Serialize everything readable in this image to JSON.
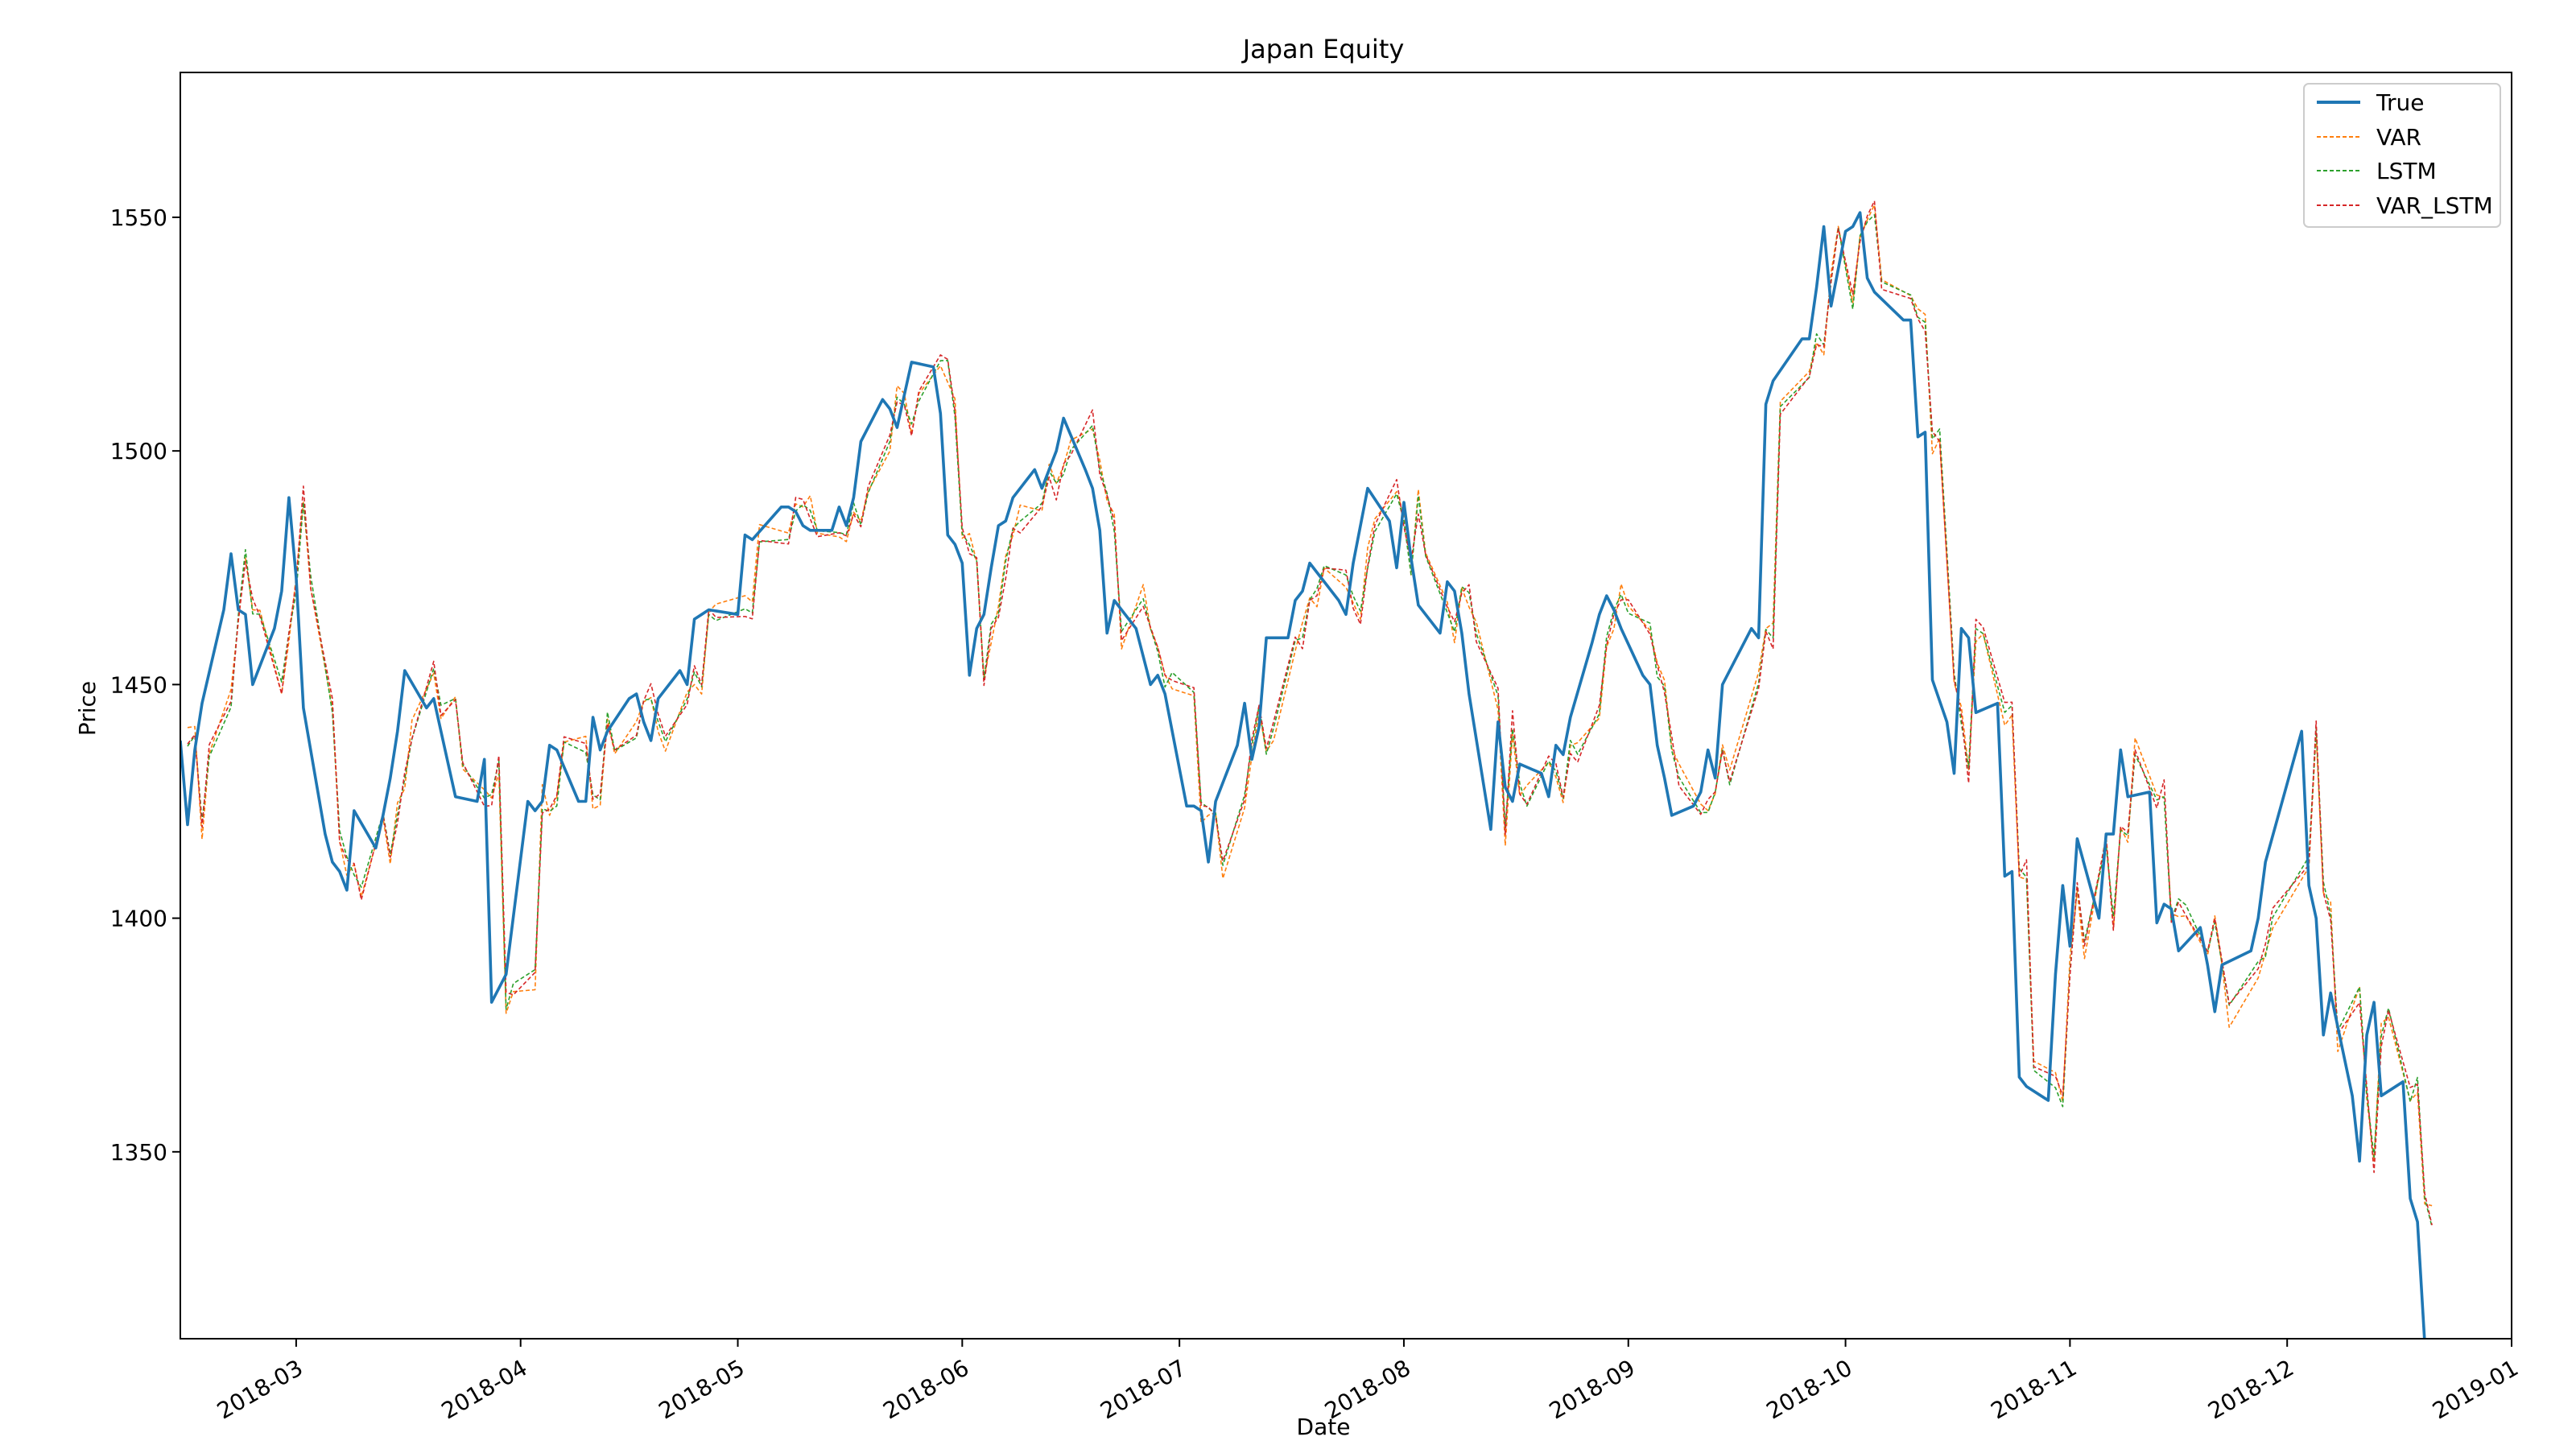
{
  "colors": {
    "true": "#1f77b4",
    "var": "#ff7f0e",
    "lstm": "#2ca02c",
    "var_lstm": "#d62728"
  },
  "chart_data": {
    "type": "line",
    "title": "Japan Equity",
    "xlabel": "Date",
    "ylabel": "Price",
    "xlim": [
      "2018-02-13",
      "2019-01-01"
    ],
    "ylim": [
      1310,
      1581
    ],
    "x_ticks": [
      "2018-03-01",
      "2018-04-01",
      "2018-05-01",
      "2018-06-01",
      "2018-07-01",
      "2018-08-01",
      "2018-09-01",
      "2018-10-01",
      "2018-11-01",
      "2018-12-01",
      "2019-01-01"
    ],
    "x_tick_labels": [
      "2018-03",
      "2018-04",
      "2018-05",
      "2018-06",
      "2018-07",
      "2018-08",
      "2018-09",
      "2018-10",
      "2018-11",
      "2018-12",
      "2019-01"
    ],
    "y_ticks": [
      1350,
      1400,
      1450,
      1500,
      1550
    ],
    "grid": false,
    "legend": "top-right",
    "true_series": {
      "name": "True",
      "points": [
        [
          "2018-02-13",
          1438
        ],
        [
          "2018-02-14",
          1420
        ],
        [
          "2018-02-15",
          1436
        ],
        [
          "2018-02-16",
          1446
        ],
        [
          "2018-02-19",
          1466
        ],
        [
          "2018-02-20",
          1478
        ],
        [
          "2018-02-21",
          1466
        ],
        [
          "2018-02-22",
          1465
        ],
        [
          "2018-02-23",
          1450
        ],
        [
          "2018-02-26",
          1462
        ],
        [
          "2018-02-27",
          1470
        ],
        [
          "2018-02-28",
          1490
        ],
        [
          "2018-03-01",
          1473
        ],
        [
          "2018-03-02",
          1445
        ],
        [
          "2018-03-05",
          1418
        ],
        [
          "2018-03-06",
          1412
        ],
        [
          "2018-03-07",
          1410
        ],
        [
          "2018-03-08",
          1406
        ],
        [
          "2018-03-09",
          1423
        ],
        [
          "2018-03-12",
          1415
        ],
        [
          "2018-03-13",
          1422
        ],
        [
          "2018-03-14",
          1430
        ],
        [
          "2018-03-15",
          1440
        ],
        [
          "2018-03-16",
          1453
        ],
        [
          "2018-03-19",
          1445
        ],
        [
          "2018-03-20",
          1447
        ],
        [
          "2018-03-22",
          1433
        ],
        [
          "2018-03-23",
          1426
        ],
        [
          "2018-03-26",
          1425
        ],
        [
          "2018-03-27",
          1434
        ],
        [
          "2018-03-28",
          1382
        ],
        [
          "2018-03-29",
          1385
        ],
        [
          "2018-03-30",
          1388
        ],
        [
          "2018-04-02",
          1425
        ],
        [
          "2018-04-03",
          1423
        ],
        [
          "2018-04-04",
          1425
        ],
        [
          "2018-04-05",
          1437
        ],
        [
          "2018-04-06",
          1436
        ],
        [
          "2018-04-09",
          1425
        ],
        [
          "2018-04-10",
          1425
        ],
        [
          "2018-04-11",
          1443
        ],
        [
          "2018-04-12",
          1436
        ],
        [
          "2018-04-13",
          1440
        ],
        [
          "2018-04-16",
          1447
        ],
        [
          "2018-04-17",
          1448
        ],
        [
          "2018-04-18",
          1442
        ],
        [
          "2018-04-19",
          1438
        ],
        [
          "2018-04-20",
          1447
        ],
        [
          "2018-04-23",
          1453
        ],
        [
          "2018-04-24",
          1450
        ],
        [
          "2018-04-25",
          1464
        ],
        [
          "2018-04-26",
          1465
        ],
        [
          "2018-04-27",
          1466
        ],
        [
          "2018-05-01",
          1465
        ],
        [
          "2018-05-02",
          1482
        ],
        [
          "2018-05-03",
          1481
        ],
        [
          "2018-05-07",
          1488
        ],
        [
          "2018-05-08",
          1488
        ],
        [
          "2018-05-09",
          1487
        ],
        [
          "2018-05-10",
          1484
        ],
        [
          "2018-05-11",
          1483
        ],
        [
          "2018-05-14",
          1483
        ],
        [
          "2018-05-15",
          1488
        ],
        [
          "2018-05-16",
          1484
        ],
        [
          "2018-05-17",
          1490
        ],
        [
          "2018-05-18",
          1502
        ],
        [
          "2018-05-21",
          1511
        ],
        [
          "2018-05-22",
          1509
        ],
        [
          "2018-05-23",
          1505
        ],
        [
          "2018-05-24",
          1512
        ],
        [
          "2018-05-25",
          1519
        ],
        [
          "2018-05-28",
          1518
        ],
        [
          "2018-05-29",
          1508
        ],
        [
          "2018-05-30",
          1482
        ],
        [
          "2018-05-31",
          1480
        ],
        [
          "2018-06-01",
          1476
        ],
        [
          "2018-06-02",
          1452
        ],
        [
          "2018-06-03",
          1462
        ],
        [
          "2018-06-04",
          1465
        ],
        [
          "2018-06-05",
          1475
        ],
        [
          "2018-06-06",
          1484
        ],
        [
          "2018-06-07",
          1485
        ],
        [
          "2018-06-08",
          1490
        ],
        [
          "2018-06-11",
          1496
        ],
        [
          "2018-06-12",
          1492
        ],
        [
          "2018-06-13",
          1496
        ],
        [
          "2018-06-14",
          1500
        ],
        [
          "2018-06-15",
          1507
        ],
        [
          "2018-06-18",
          1496
        ],
        [
          "2018-06-19",
          1492
        ],
        [
          "2018-06-20",
          1483
        ],
        [
          "2018-06-21",
          1461
        ],
        [
          "2018-06-22",
          1468
        ],
        [
          "2018-06-25",
          1462
        ],
        [
          "2018-06-26",
          1456
        ],
        [
          "2018-06-27",
          1450
        ],
        [
          "2018-06-28",
          1452
        ],
        [
          "2018-06-29",
          1448
        ],
        [
          "2018-07-02",
          1424
        ],
        [
          "2018-07-03",
          1424
        ],
        [
          "2018-07-04",
          1423
        ],
        [
          "2018-07-05",
          1412
        ],
        [
          "2018-07-06",
          1425
        ],
        [
          "2018-07-09",
          1437
        ],
        [
          "2018-07-10",
          1446
        ],
        [
          "2018-07-11",
          1434
        ],
        [
          "2018-07-12",
          1441
        ],
        [
          "2018-07-13",
          1460
        ],
        [
          "2018-07-16",
          1460
        ],
        [
          "2018-07-17",
          1468
        ],
        [
          "2018-07-18",
          1470
        ],
        [
          "2018-07-19",
          1476
        ],
        [
          "2018-07-20",
          1474
        ],
        [
          "2018-07-23",
          1468
        ],
        [
          "2018-07-24",
          1465
        ],
        [
          "2018-07-25",
          1476
        ],
        [
          "2018-07-26",
          1484
        ],
        [
          "2018-07-27",
          1492
        ],
        [
          "2018-07-30",
          1485
        ],
        [
          "2018-07-31",
          1475
        ],
        [
          "2018-08-01",
          1489
        ],
        [
          "2018-08-02",
          1477
        ],
        [
          "2018-08-03",
          1467
        ],
        [
          "2018-08-06",
          1461
        ],
        [
          "2018-08-07",
          1472
        ],
        [
          "2018-08-08",
          1470
        ],
        [
          "2018-08-09",
          1461
        ],
        [
          "2018-08-10",
          1448
        ],
        [
          "2018-08-13",
          1419
        ],
        [
          "2018-08-14",
          1442
        ],
        [
          "2018-08-15",
          1428
        ],
        [
          "2018-08-16",
          1425
        ],
        [
          "2018-08-17",
          1433
        ],
        [
          "2018-08-20",
          1431
        ],
        [
          "2018-08-21",
          1426
        ],
        [
          "2018-08-22",
          1437
        ],
        [
          "2018-08-23",
          1435
        ],
        [
          "2018-08-24",
          1443
        ],
        [
          "2018-08-27",
          1459
        ],
        [
          "2018-08-28",
          1465
        ],
        [
          "2018-08-29",
          1469
        ],
        [
          "2018-08-30",
          1466
        ],
        [
          "2018-08-31",
          1462
        ],
        [
          "2018-09-03",
          1452
        ],
        [
          "2018-09-04",
          1450
        ],
        [
          "2018-09-05",
          1437
        ],
        [
          "2018-09-06",
          1430
        ],
        [
          "2018-09-07",
          1422
        ],
        [
          "2018-09-10",
          1424
        ],
        [
          "2018-09-11",
          1427
        ],
        [
          "2018-09-12",
          1436
        ],
        [
          "2018-09-13",
          1430
        ],
        [
          "2018-09-14",
          1450
        ],
        [
          "2018-09-18",
          1462
        ],
        [
          "2018-09-19",
          1460
        ],
        [
          "2018-09-20",
          1510
        ],
        [
          "2018-09-21",
          1515
        ],
        [
          "2018-09-25",
          1524
        ],
        [
          "2018-09-26",
          1524
        ],
        [
          "2018-09-27",
          1535
        ],
        [
          "2018-09-28",
          1548
        ],
        [
          "2018-09-29",
          1531
        ],
        [
          "2018-10-01",
          1547
        ],
        [
          "2018-10-02",
          1548
        ],
        [
          "2018-10-03",
          1551
        ],
        [
          "2018-10-04",
          1537
        ],
        [
          "2018-10-05",
          1534
        ],
        [
          "2018-10-09",
          1528
        ],
        [
          "2018-10-10",
          1528
        ],
        [
          "2018-10-11",
          1503
        ],
        [
          "2018-10-12",
          1504
        ],
        [
          "2018-10-13",
          1451
        ],
        [
          "2018-10-15",
          1442
        ],
        [
          "2018-10-16",
          1431
        ],
        [
          "2018-10-17",
          1462
        ],
        [
          "2018-10-18",
          1460
        ],
        [
          "2018-10-19",
          1444
        ],
        [
          "2018-10-22",
          1446
        ],
        [
          "2018-10-23",
          1409
        ],
        [
          "2018-10-24",
          1410
        ],
        [
          "2018-10-25",
          1366
        ],
        [
          "2018-10-26",
          1364
        ],
        [
          "2018-10-29",
          1361
        ],
        [
          "2018-10-30",
          1388
        ],
        [
          "2018-10-31",
          1407
        ],
        [
          "2018-11-01",
          1394
        ],
        [
          "2018-11-02",
          1417
        ],
        [
          "2018-11-05",
          1400
        ],
        [
          "2018-11-06",
          1418
        ],
        [
          "2018-11-07",
          1418
        ],
        [
          "2018-11-08",
          1436
        ],
        [
          "2018-11-09",
          1426
        ],
        [
          "2018-11-12",
          1427
        ],
        [
          "2018-11-13",
          1399
        ],
        [
          "2018-11-14",
          1403
        ],
        [
          "2018-11-15",
          1402
        ],
        [
          "2018-11-16",
          1393
        ],
        [
          "2018-11-19",
          1398
        ],
        [
          "2018-11-20",
          1390
        ],
        [
          "2018-11-21",
          1380
        ],
        [
          "2018-11-22",
          1390
        ],
        [
          "2018-11-26",
          1393
        ],
        [
          "2018-11-27",
          1400
        ],
        [
          "2018-11-28",
          1412
        ],
        [
          "2018-12-03",
          1440
        ],
        [
          "2018-12-04",
          1407
        ],
        [
          "2018-12-05",
          1400
        ],
        [
          "2018-12-06",
          1375
        ],
        [
          "2018-12-07",
          1384
        ],
        [
          "2018-12-10",
          1362
        ],
        [
          "2018-12-11",
          1348
        ],
        [
          "2018-12-12",
          1375
        ],
        [
          "2018-12-13",
          1382
        ],
        [
          "2018-12-14",
          1362
        ],
        [
          "2018-12-17",
          1365
        ],
        [
          "2018-12-18",
          1340
        ],
        [
          "2018-12-19",
          1335
        ],
        [
          "2018-12-20",
          1309
        ]
      ]
    },
    "forecast_series": [
      {
        "name": "VAR",
        "shift_days": 1,
        "noise": 1.8
      },
      {
        "name": "LSTM",
        "shift_days": 1,
        "noise": 0.8
      },
      {
        "name": "VAR_LSTM",
        "shift_days": 1,
        "noise": 1.3
      }
    ]
  }
}
